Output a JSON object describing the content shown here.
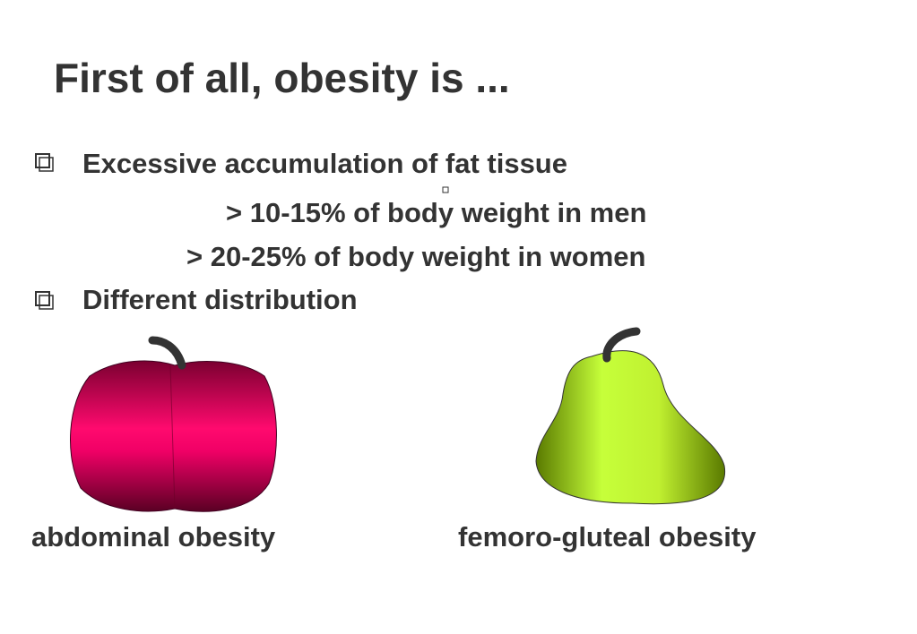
{
  "slide": {
    "title": "First of all,  obesity is ...",
    "bullets": [
      {
        "text": "Excessive accumulation of fat tissue",
        "sub_lines": [
          "> 10-15% of body weight in men",
          "> 20-25%  of body weight in women"
        ]
      },
      {
        "text": "Different distribution"
      }
    ],
    "captions": [
      "abdominal obesity",
      "femoro-gluteal obesity"
    ]
  }
}
